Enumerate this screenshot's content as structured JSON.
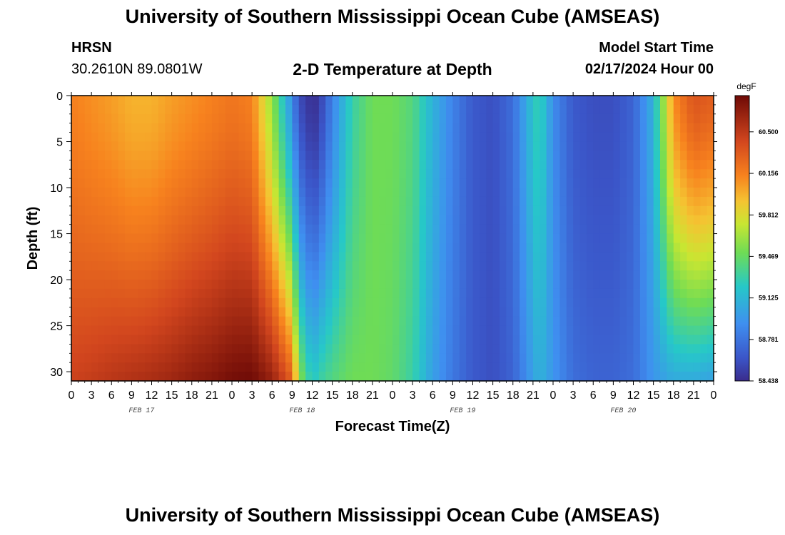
{
  "title": "University of Southern Mississippi Ocean Cube (AMSEAS)",
  "footer_title": "University of Southern Mississippi Ocean Cube (AMSEAS)",
  "station": "HRSN",
  "coordinates": "30.2610N  89.0801W",
  "subtitle": "2-D Temperature at Depth",
  "model_start_label": "Model Start Time",
  "model_start_value": "02/17/2024 Hour 00",
  "chart_data": {
    "type": "heatmap",
    "title": "2-D Temperature at Depth",
    "xlabel": "Forecast Time(Z)",
    "ylabel": "Depth (ft)",
    "x_range_hours": [
      0,
      96
    ],
    "x_tick_labels": [
      "0",
      "3",
      "6",
      "9",
      "12",
      "15",
      "18",
      "21",
      "0",
      "3",
      "6",
      "9",
      "12",
      "15",
      "18",
      "21",
      "0",
      "3",
      "6",
      "9",
      "12",
      "15",
      "18",
      "21",
      "0",
      "3",
      "6",
      "9",
      "12",
      "15",
      "18",
      "21",
      "0"
    ],
    "date_labels": [
      "FEB 17",
      "FEB 18",
      "FEB 19",
      "FEB 20"
    ],
    "ylim": [
      0,
      31
    ],
    "y_ticks": [
      0,
      5,
      10,
      15,
      20,
      25,
      30
    ],
    "y_tick_labels": [
      "0",
      "5",
      "10",
      "15",
      "20",
      "25",
      "30"
    ],
    "colorbar": {
      "unit": "degF",
      "min": 58.438,
      "max": 60.8,
      "labels": [
        "60.500",
        "60.156",
        "59.812",
        "59.469",
        "59.125",
        "58.781",
        "58.438"
      ]
    },
    "time_hours": [
      0,
      3,
      6,
      9,
      12,
      15,
      18,
      21,
      24,
      27,
      30,
      33,
      34,
      36,
      37,
      39,
      42,
      45,
      48,
      51,
      54,
      57,
      60,
      63,
      66,
      69,
      70,
      72,
      75,
      78,
      81,
      84,
      87,
      90,
      93,
      96
    ],
    "temperature_surface_degF": [
      60.15,
      60.1,
      60.05,
      59.98,
      59.98,
      60.05,
      60.1,
      60.15,
      60.2,
      60.15,
      59.6,
      58.9,
      58.6,
      58.45,
      58.5,
      58.85,
      59.3,
      59.5,
      59.5,
      59.4,
      59.1,
      58.85,
      58.65,
      58.6,
      58.75,
      59.2,
      59.3,
      58.9,
      58.65,
      58.6,
      58.6,
      58.7,
      59.1,
      60.1,
      60.35,
      60.3
    ],
    "temperature_bottom_degF": [
      60.45,
      60.48,
      60.52,
      60.55,
      60.58,
      60.62,
      60.68,
      60.72,
      60.78,
      60.8,
      60.65,
      60.3,
      59.6,
      59.2,
      59.3,
      59.4,
      59.5,
      59.5,
      59.45,
      59.3,
      59.0,
      58.8,
      58.65,
      58.6,
      58.7,
      59.0,
      59.1,
      58.95,
      58.75,
      58.7,
      58.7,
      58.75,
      58.95,
      59.05,
      59.05,
      59.0
    ]
  }
}
